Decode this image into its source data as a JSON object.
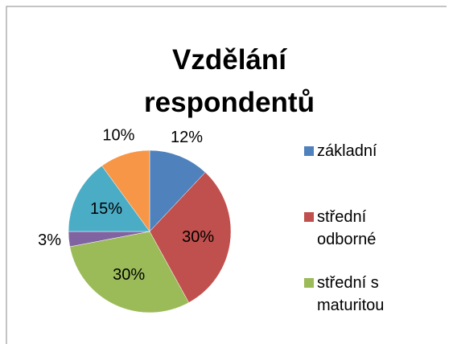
{
  "chart_data": {
    "type": "pie",
    "title": "Vzdělání respondentů",
    "categories": [
      "základní",
      "střední odborné",
      "střední s maturitou",
      null,
      null,
      null
    ],
    "values": [
      12,
      30,
      30,
      3,
      15,
      10
    ],
    "value_labels": [
      "12%",
      "30%",
      "30%",
      "3%",
      "15%",
      "10%"
    ],
    "colors": [
      "#4f81bd",
      "#c0504d",
      "#9bbb59",
      "#8064a2",
      "#4bacc6",
      "#f79646"
    ],
    "legend": "right"
  }
}
